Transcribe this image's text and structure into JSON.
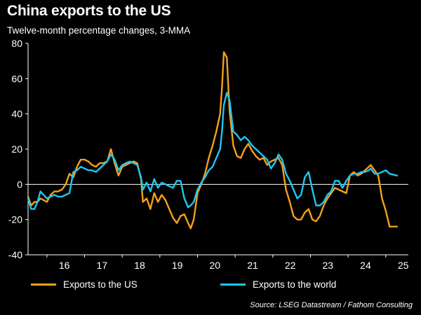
{
  "title": "China exports to the US",
  "subtitle": "Twelve-month percentage changes, 3-MMA",
  "source": "Source: LSEG Datastream / Fathom Consulting",
  "colors": {
    "background": "#000000",
    "us": "#f5a01a",
    "world": "#1ec8f0",
    "zero_line": "#ffffff",
    "axis": "#ffffff"
  },
  "chart_data": {
    "type": "line",
    "title": "China exports to the US",
    "subtitle": "Twelve-month percentage changes, 3-MMA",
    "xlabel": "",
    "ylabel": "",
    "ylim": [
      -40,
      80
    ],
    "xlim": [
      2015.5,
      2025.6
    ],
    "yticks": [
      -40,
      -20,
      0,
      20,
      40,
      60,
      80
    ],
    "xtick_labels": [
      "16",
      "17",
      "18",
      "19",
      "20",
      "21",
      "22",
      "23",
      "24",
      "25"
    ],
    "grid": false,
    "legend_position": "bottom",
    "series": [
      {
        "name": "Exports to the US",
        "color": "#f5a01a",
        "points": [
          [
            2015.5,
            -7
          ],
          [
            2015.58,
            -12
          ],
          [
            2015.67,
            -10
          ],
          [
            2015.75,
            -10
          ],
          [
            2015.83,
            -8
          ],
          [
            2016.0,
            -10
          ],
          [
            2016.1,
            -6
          ],
          [
            2016.2,
            -4
          ],
          [
            2016.3,
            -4
          ],
          [
            2016.4,
            -3
          ],
          [
            2016.5,
            0
          ],
          [
            2016.6,
            6
          ],
          [
            2016.7,
            4
          ],
          [
            2016.8,
            10
          ],
          [
            2016.9,
            14
          ],
          [
            2017.0,
            14
          ],
          [
            2017.1,
            13
          ],
          [
            2017.2,
            11
          ],
          [
            2017.3,
            10
          ],
          [
            2017.4,
            12
          ],
          [
            2017.5,
            12
          ],
          [
            2017.6,
            13
          ],
          [
            2017.7,
            20
          ],
          [
            2017.8,
            12
          ],
          [
            2017.9,
            5
          ],
          [
            2018.0,
            10
          ],
          [
            2018.1,
            11
          ],
          [
            2018.2,
            12
          ],
          [
            2018.3,
            13
          ],
          [
            2018.4,
            12
          ],
          [
            2018.5,
            3
          ],
          [
            2018.55,
            -10
          ],
          [
            2018.65,
            -8
          ],
          [
            2018.75,
            -14
          ],
          [
            2018.85,
            -5
          ],
          [
            2018.95,
            -10
          ],
          [
            2019.05,
            -6
          ],
          [
            2019.15,
            -9
          ],
          [
            2019.25,
            -14
          ],
          [
            2019.35,
            -19
          ],
          [
            2019.45,
            -22
          ],
          [
            2019.55,
            -18
          ],
          [
            2019.65,
            -17
          ],
          [
            2019.75,
            -22
          ],
          [
            2019.82,
            -25
          ],
          [
            2019.9,
            -20
          ],
          [
            2020.0,
            -5
          ],
          [
            2020.1,
            0
          ],
          [
            2020.2,
            6
          ],
          [
            2020.3,
            15
          ],
          [
            2020.4,
            22
          ],
          [
            2020.5,
            30
          ],
          [
            2020.6,
            40
          ],
          [
            2020.65,
            55
          ],
          [
            2020.7,
            75
          ],
          [
            2020.78,
            72
          ],
          [
            2020.85,
            42
          ],
          [
            2020.95,
            22
          ],
          [
            2021.05,
            16
          ],
          [
            2021.15,
            15
          ],
          [
            2021.25,
            20
          ],
          [
            2021.35,
            23
          ],
          [
            2021.45,
            19
          ],
          [
            2021.55,
            16
          ],
          [
            2021.65,
            14
          ],
          [
            2021.75,
            15
          ],
          [
            2021.85,
            11
          ],
          [
            2021.95,
            13
          ],
          [
            2022.05,
            14
          ],
          [
            2022.15,
            15
          ],
          [
            2022.25,
            11
          ],
          [
            2022.35,
            -3
          ],
          [
            2022.45,
            -10
          ],
          [
            2022.55,
            -18
          ],
          [
            2022.65,
            -20
          ],
          [
            2022.75,
            -20
          ],
          [
            2022.85,
            -16
          ],
          [
            2022.95,
            -14
          ],
          [
            2023.05,
            -20
          ],
          [
            2023.15,
            -21
          ],
          [
            2023.25,
            -18
          ],
          [
            2023.35,
            -12
          ],
          [
            2023.45,
            -8
          ],
          [
            2023.55,
            -5
          ],
          [
            2023.65,
            -2
          ],
          [
            2023.75,
            -3
          ],
          [
            2023.85,
            -4
          ],
          [
            2023.95,
            -5
          ],
          [
            2024.05,
            5
          ],
          [
            2024.15,
            7
          ],
          [
            2024.25,
            5
          ],
          [
            2024.35,
            6
          ],
          [
            2024.45,
            8
          ],
          [
            2024.55,
            10
          ],
          [
            2024.6,
            11
          ],
          [
            2024.7,
            8
          ],
          [
            2024.8,
            5
          ],
          [
            2024.9,
            -8
          ],
          [
            2025.0,
            -15
          ],
          [
            2025.1,
            -24
          ],
          [
            2025.3,
            -24
          ]
        ]
      },
      {
        "name": "Exports to the world",
        "color": "#1ec8f0",
        "points": [
          [
            2015.5,
            -8
          ],
          [
            2015.58,
            -14
          ],
          [
            2015.67,
            -14
          ],
          [
            2015.75,
            -10
          ],
          [
            2015.83,
            -4
          ],
          [
            2016.0,
            -8
          ],
          [
            2016.1,
            -7
          ],
          [
            2016.2,
            -6
          ],
          [
            2016.3,
            -7
          ],
          [
            2016.4,
            -7
          ],
          [
            2016.5,
            -6
          ],
          [
            2016.6,
            -5
          ],
          [
            2016.7,
            7
          ],
          [
            2016.8,
            8
          ],
          [
            2016.9,
            10
          ],
          [
            2017.0,
            9
          ],
          [
            2017.1,
            8
          ],
          [
            2017.2,
            8
          ],
          [
            2017.3,
            7
          ],
          [
            2017.4,
            9
          ],
          [
            2017.5,
            11
          ],
          [
            2017.6,
            13
          ],
          [
            2017.7,
            17
          ],
          [
            2017.8,
            14
          ],
          [
            2017.9,
            8
          ],
          [
            2018.0,
            11
          ],
          [
            2018.1,
            12
          ],
          [
            2018.2,
            13
          ],
          [
            2018.3,
            12
          ],
          [
            2018.4,
            11
          ],
          [
            2018.5,
            4
          ],
          [
            2018.55,
            -3
          ],
          [
            2018.65,
            1
          ],
          [
            2018.75,
            -4
          ],
          [
            2018.85,
            3
          ],
          [
            2018.95,
            -2
          ],
          [
            2019.05,
            1
          ],
          [
            2019.15,
            0
          ],
          [
            2019.25,
            -1
          ],
          [
            2019.35,
            -2
          ],
          [
            2019.45,
            2
          ],
          [
            2019.55,
            2
          ],
          [
            2019.65,
            -8
          ],
          [
            2019.75,
            -13
          ],
          [
            2019.82,
            -12
          ],
          [
            2019.9,
            -10
          ],
          [
            2020.0,
            -3
          ],
          [
            2020.1,
            1
          ],
          [
            2020.2,
            4
          ],
          [
            2020.3,
            8
          ],
          [
            2020.4,
            10
          ],
          [
            2020.5,
            15
          ],
          [
            2020.6,
            20
          ],
          [
            2020.65,
            30
          ],
          [
            2020.7,
            45
          ],
          [
            2020.78,
            52
          ],
          [
            2020.85,
            48
          ],
          [
            2020.95,
            30
          ],
          [
            2021.05,
            28
          ],
          [
            2021.15,
            25
          ],
          [
            2021.25,
            27
          ],
          [
            2021.35,
            25
          ],
          [
            2021.45,
            22
          ],
          [
            2021.55,
            20
          ],
          [
            2021.65,
            18
          ],
          [
            2021.75,
            16
          ],
          [
            2021.85,
            14
          ],
          [
            2021.95,
            9
          ],
          [
            2022.05,
            12
          ],
          [
            2022.15,
            17
          ],
          [
            2022.25,
            14
          ],
          [
            2022.35,
            6
          ],
          [
            2022.45,
            2
          ],
          [
            2022.55,
            -3
          ],
          [
            2022.65,
            -8
          ],
          [
            2022.75,
            -6
          ],
          [
            2022.85,
            4
          ],
          [
            2022.95,
            7
          ],
          [
            2023.05,
            -3
          ],
          [
            2023.15,
            -12
          ],
          [
            2023.25,
            -12
          ],
          [
            2023.35,
            -10
          ],
          [
            2023.45,
            -6
          ],
          [
            2023.55,
            -4
          ],
          [
            2023.65,
            2
          ],
          [
            2023.75,
            2
          ],
          [
            2023.85,
            -2
          ],
          [
            2023.95,
            2
          ],
          [
            2024.05,
            5
          ],
          [
            2024.15,
            6
          ],
          [
            2024.25,
            6
          ],
          [
            2024.35,
            7
          ],
          [
            2024.45,
            7
          ],
          [
            2024.55,
            8
          ],
          [
            2024.6,
            9
          ],
          [
            2024.7,
            6
          ],
          [
            2024.8,
            6
          ],
          [
            2024.9,
            7
          ],
          [
            2025.0,
            8
          ],
          [
            2025.1,
            6
          ],
          [
            2025.3,
            5
          ]
        ]
      }
    ]
  }
}
